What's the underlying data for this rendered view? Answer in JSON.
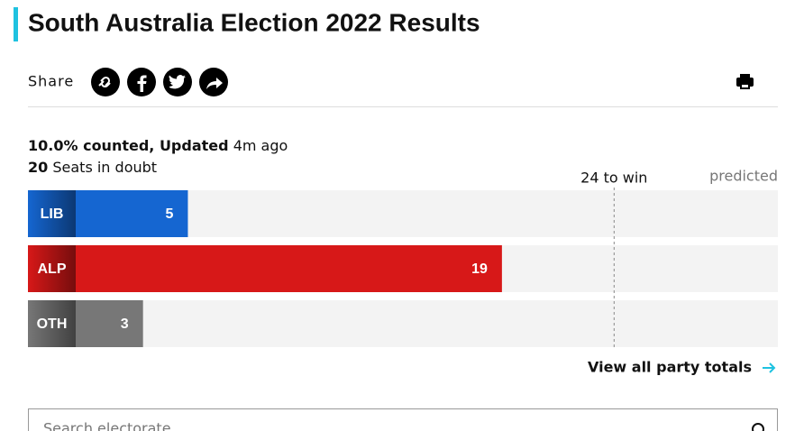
{
  "header": {
    "title": "South Australia Election 2022 Results"
  },
  "share": {
    "label": "Share"
  },
  "status": {
    "counted": "10.0% counted, Updated",
    "updated_ago": "4m ago",
    "doubt_count": 20,
    "doubt_label": "Seats in doubt"
  },
  "chart_data": {
    "type": "bar",
    "orientation": "horizontal",
    "categories": [
      "LIB",
      "ALP",
      "OTH"
    ],
    "values": [
      5,
      19,
      3
    ],
    "colors": [
      "#1566d1",
      "#d71818",
      "#777777"
    ],
    "xlim": [
      0,
      31.3
    ],
    "threshold": {
      "value": 24,
      "label": "24 to win"
    },
    "predicted_label": "predicted"
  },
  "link": {
    "label": "View all party totals"
  },
  "search": {
    "placeholder": "Search electorate"
  }
}
